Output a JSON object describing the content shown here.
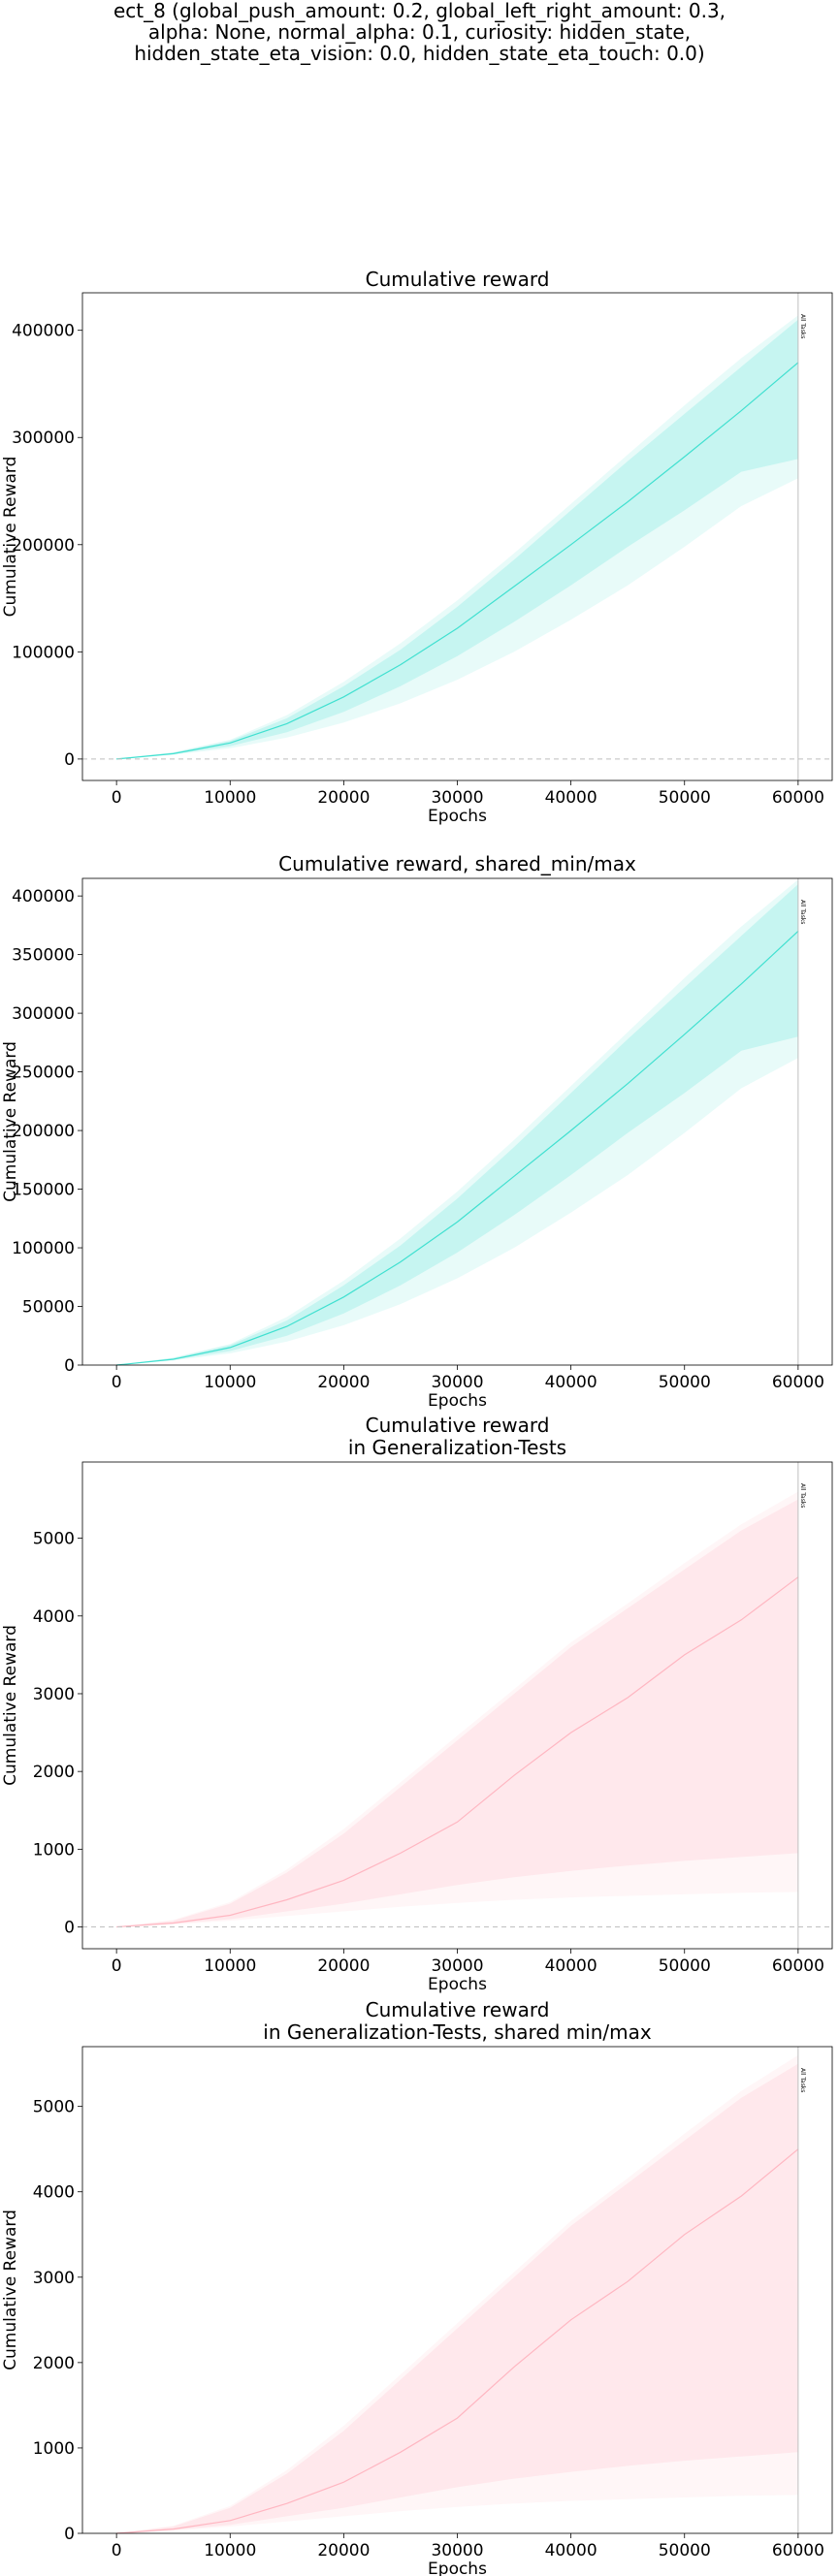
{
  "suptitle_lines": [
    "ect_8 (global_push_amount: 0.2, global_left_right_amount: 0.3,",
    "alpha: None, normal_alpha: 0.1, curiosity: hidden_state,",
    "hidden_state_eta_vision: 0.0, hidden_state_eta_touch: 0.0)"
  ],
  "colors": {
    "train": "#40e0d0",
    "test": "#ffb6c1",
    "zero_line": "#bfbfbf",
    "vline": "#bfbfbf"
  },
  "chart_data": [
    {
      "type": "line",
      "title": "Cumulative reward",
      "xlabel": "Epochs",
      "ylabel": "Cumulative Reward",
      "xlim": [
        -3000,
        63000
      ],
      "ylim": [
        -20000,
        435000
      ],
      "xticks": [
        0,
        10000,
        20000,
        30000,
        40000,
        50000,
        60000
      ],
      "yticks": [
        0,
        100000,
        200000,
        300000,
        400000
      ],
      "zero_line": true,
      "vline": {
        "x": 60000,
        "label": "All Tasks"
      },
      "series": [
        {
          "color_key": "train",
          "x": [
            0,
            5000,
            10000,
            15000,
            20000,
            25000,
            30000,
            35000,
            40000,
            45000,
            50000,
            55000,
            60000
          ],
          "mean": [
            0,
            5000,
            15000,
            33000,
            58000,
            88000,
            122000,
            161000,
            200000,
            240000,
            282000,
            325000,
            370000
          ],
          "q_low": [
            0,
            4500,
            12000,
            25000,
            44000,
            68000,
            96000,
            128000,
            162000,
            198000,
            232000,
            268000,
            280000
          ],
          "q_high": [
            0,
            6000,
            17000,
            38000,
            68000,
            102000,
            142000,
            186000,
            232000,
            278000,
            322000,
            366000,
            410000
          ],
          "min": [
            0,
            4000,
            10000,
            20000,
            34000,
            52000,
            74000,
            100000,
            130000,
            162000,
            198000,
            236000,
            262000
          ],
          "max": [
            0,
            6500,
            18000,
            41000,
            72000,
            108000,
            148000,
            192000,
            238000,
            284000,
            330000,
            374000,
            414000
          ]
        }
      ]
    },
    {
      "type": "line",
      "title": "Cumulative reward, shared_min/max",
      "xlabel": "Epochs",
      "ylabel": "Cumulative Reward",
      "xlim": [
        -3000,
        63000
      ],
      "ylim": [
        0,
        415000
      ],
      "xticks": [
        0,
        10000,
        20000,
        30000,
        40000,
        50000,
        60000
      ],
      "yticks": [
        0,
        50000,
        100000,
        150000,
        200000,
        250000,
        300000,
        350000,
        400000
      ],
      "zero_line": false,
      "vline": {
        "x": 60000,
        "label": "All Tasks"
      },
      "series": [
        {
          "color_key": "train",
          "x": [
            0,
            5000,
            10000,
            15000,
            20000,
            25000,
            30000,
            35000,
            40000,
            45000,
            50000,
            55000,
            60000
          ],
          "mean": [
            0,
            5000,
            15000,
            33000,
            58000,
            88000,
            122000,
            161000,
            200000,
            240000,
            282000,
            325000,
            370000
          ],
          "q_low": [
            0,
            4500,
            12000,
            25000,
            44000,
            68000,
            96000,
            128000,
            162000,
            198000,
            232000,
            268000,
            280000
          ],
          "q_high": [
            0,
            6000,
            17000,
            38000,
            68000,
            102000,
            142000,
            186000,
            232000,
            278000,
            322000,
            366000,
            410000
          ],
          "min": [
            0,
            4000,
            10000,
            20000,
            34000,
            52000,
            74000,
            100000,
            130000,
            162000,
            198000,
            236000,
            262000
          ],
          "max": [
            0,
            6500,
            18000,
            41000,
            72000,
            108000,
            148000,
            192000,
            238000,
            284000,
            330000,
            374000,
            414000
          ]
        }
      ]
    },
    {
      "type": "line",
      "title": "Cumulative reward\nin Generalization-Tests",
      "xlabel": "Epochs",
      "ylabel": "Cumulative Reward",
      "xlim": [
        -3000,
        63000
      ],
      "ylim": [
        -280,
        5980
      ],
      "xticks": [
        0,
        10000,
        20000,
        30000,
        40000,
        50000,
        60000
      ],
      "yticks": [
        0,
        1000,
        2000,
        3000,
        4000,
        5000
      ],
      "zero_line": true,
      "vline": {
        "x": 60000,
        "label": "All Tasks"
      },
      "series": [
        {
          "color_key": "test",
          "x": [
            0,
            5000,
            10000,
            15000,
            20000,
            25000,
            30000,
            35000,
            40000,
            45000,
            50000,
            55000,
            60000
          ],
          "mean": [
            0,
            50,
            150,
            350,
            600,
            950,
            1350,
            1950,
            2500,
            2950,
            3500,
            3950,
            4500
          ],
          "q_low": [
            0,
            40,
            100,
            200,
            300,
            420,
            540,
            640,
            720,
            790,
            850,
            900,
            950
          ],
          "q_high": [
            0,
            80,
            300,
            700,
            1200,
            1800,
            2400,
            3000,
            3600,
            4100,
            4600,
            5100,
            5500
          ],
          "min": [
            0,
            30,
            80,
            140,
            200,
            260,
            310,
            350,
            380,
            400,
            420,
            440,
            450
          ],
          "max": [
            0,
            90,
            320,
            740,
            1260,
            1860,
            2460,
            3060,
            3660,
            4160,
            4680,
            5180,
            5600
          ]
        }
      ]
    },
    {
      "type": "line",
      "title": "Cumulative reward\nin Generalization-Tests, shared min/max",
      "xlabel": "Epochs",
      "ylabel": "Cumulative Reward",
      "xlim": [
        -3000,
        63000
      ],
      "ylim": [
        0,
        5700
      ],
      "xticks": [
        0,
        10000,
        20000,
        30000,
        40000,
        50000,
        60000
      ],
      "yticks": [
        0,
        1000,
        2000,
        3000,
        4000,
        5000
      ],
      "zero_line": false,
      "vline": {
        "x": 60000,
        "label": "All Tasks"
      },
      "series": [
        {
          "color_key": "test",
          "x": [
            0,
            5000,
            10000,
            15000,
            20000,
            25000,
            30000,
            35000,
            40000,
            45000,
            50000,
            55000,
            60000
          ],
          "mean": [
            0,
            50,
            150,
            350,
            600,
            950,
            1350,
            1950,
            2500,
            2950,
            3500,
            3950,
            4500
          ],
          "q_low": [
            0,
            40,
            100,
            200,
            300,
            420,
            540,
            640,
            720,
            790,
            850,
            900,
            950
          ],
          "q_high": [
            0,
            80,
            300,
            700,
            1200,
            1800,
            2400,
            3000,
            3600,
            4100,
            4600,
            5100,
            5500
          ],
          "min": [
            0,
            30,
            80,
            140,
            200,
            260,
            310,
            350,
            380,
            400,
            420,
            440,
            450
          ],
          "max": [
            0,
            90,
            320,
            740,
            1260,
            1860,
            2460,
            3060,
            3660,
            4160,
            4680,
            5180,
            5600
          ]
        }
      ]
    }
  ]
}
